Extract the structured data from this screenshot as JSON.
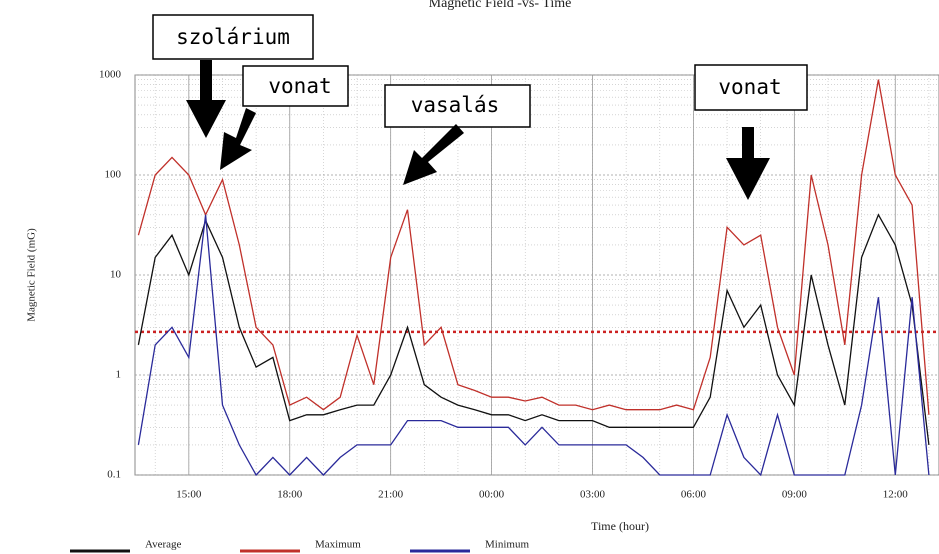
{
  "chart_data": {
    "type": "line",
    "title": "Magnetic Field -vs- Time",
    "xlabel": "Time (hour)",
    "ylabel": "Magnetic Field (mG)",
    "log_y": true,
    "grid": true,
    "xlim": [
      13.4,
      37.3
    ],
    "xticks": [
      {
        "value": 15,
        "label": "15:00"
      },
      {
        "value": 18,
        "label": "18:00"
      },
      {
        "value": 21,
        "label": "21:00"
      },
      {
        "value": 24,
        "label": "00:00"
      },
      {
        "value": 27,
        "label": "03:00"
      },
      {
        "value": 30,
        "label": "06:00"
      },
      {
        "value": 33,
        "label": "09:00"
      },
      {
        "value": 36,
        "label": "12:00"
      }
    ],
    "ylim": [
      0.1,
      1000
    ],
    "yticks": [
      0.1,
      1,
      10,
      100,
      1000
    ],
    "threshold": 2.7,
    "threshold_color": "#cc2222",
    "x": [
      13.5,
      14,
      14.5,
      15,
      15.5,
      16,
      16.5,
      17,
      17.5,
      18,
      18.5,
      19,
      19.5,
      20,
      20.5,
      21,
      21.5,
      22,
      22.5,
      23,
      23.5,
      24,
      24.5,
      25,
      25.5,
      26,
      26.5,
      27,
      27.5,
      28,
      28.5,
      29,
      29.5,
      30,
      30.5,
      31,
      31.5,
      32,
      32.5,
      33,
      33.5,
      34,
      34.5,
      35,
      35.5,
      36,
      36.5,
      37
    ],
    "series": [
      {
        "name": "Average",
        "color": "#111111",
        "values": [
          2,
          15,
          25,
          10,
          35,
          15,
          3,
          1.2,
          1.5,
          0.35,
          0.4,
          0.4,
          0.45,
          0.5,
          0.5,
          1,
          3,
          0.8,
          0.6,
          0.5,
          0.45,
          0.4,
          0.4,
          0.35,
          0.4,
          0.35,
          0.35,
          0.35,
          0.3,
          0.3,
          0.3,
          0.3,
          0.3,
          0.3,
          0.6,
          7,
          3,
          5,
          1,
          0.5,
          10,
          2,
          0.5,
          15,
          40,
          20,
          5,
          0.2
        ]
      },
      {
        "name": "Maximum",
        "color": "#c0302a",
        "values": [
          25,
          100,
          150,
          100,
          40,
          90,
          20,
          3,
          2,
          0.5,
          0.6,
          0.45,
          0.6,
          2.5,
          0.8,
          15,
          45,
          2,
          3,
          0.8,
          0.7,
          0.6,
          0.6,
          0.55,
          0.6,
          0.5,
          0.5,
          0.45,
          0.5,
          0.45,
          0.45,
          0.45,
          0.5,
          0.45,
          1.5,
          30,
          20,
          25,
          3,
          1,
          100,
          20,
          2,
          100,
          900,
          100,
          50,
          0.4
        ]
      },
      {
        "name": "Minimum",
        "color": "#2a2a9a",
        "values": [
          0.2,
          2,
          3,
          1.5,
          40,
          0.5,
          0.2,
          0.1,
          0.15,
          0.1,
          0.15,
          0.1,
          0.15,
          0.2,
          0.2,
          0.2,
          0.35,
          0.35,
          0.35,
          0.3,
          0.3,
          0.3,
          0.3,
          0.2,
          0.3,
          0.2,
          0.2,
          0.2,
          0.2,
          0.2,
          0.15,
          0.1,
          0.1,
          0.1,
          0.1,
          0.4,
          0.15,
          0.1,
          0.4,
          0.1,
          0.1,
          0.1,
          0.1,
          0.5,
          6,
          0.1,
          6,
          0.1
        ]
      }
    ],
    "annotations": [
      "szolárium",
      "vonat",
      "vasalás",
      "vonat"
    ]
  }
}
